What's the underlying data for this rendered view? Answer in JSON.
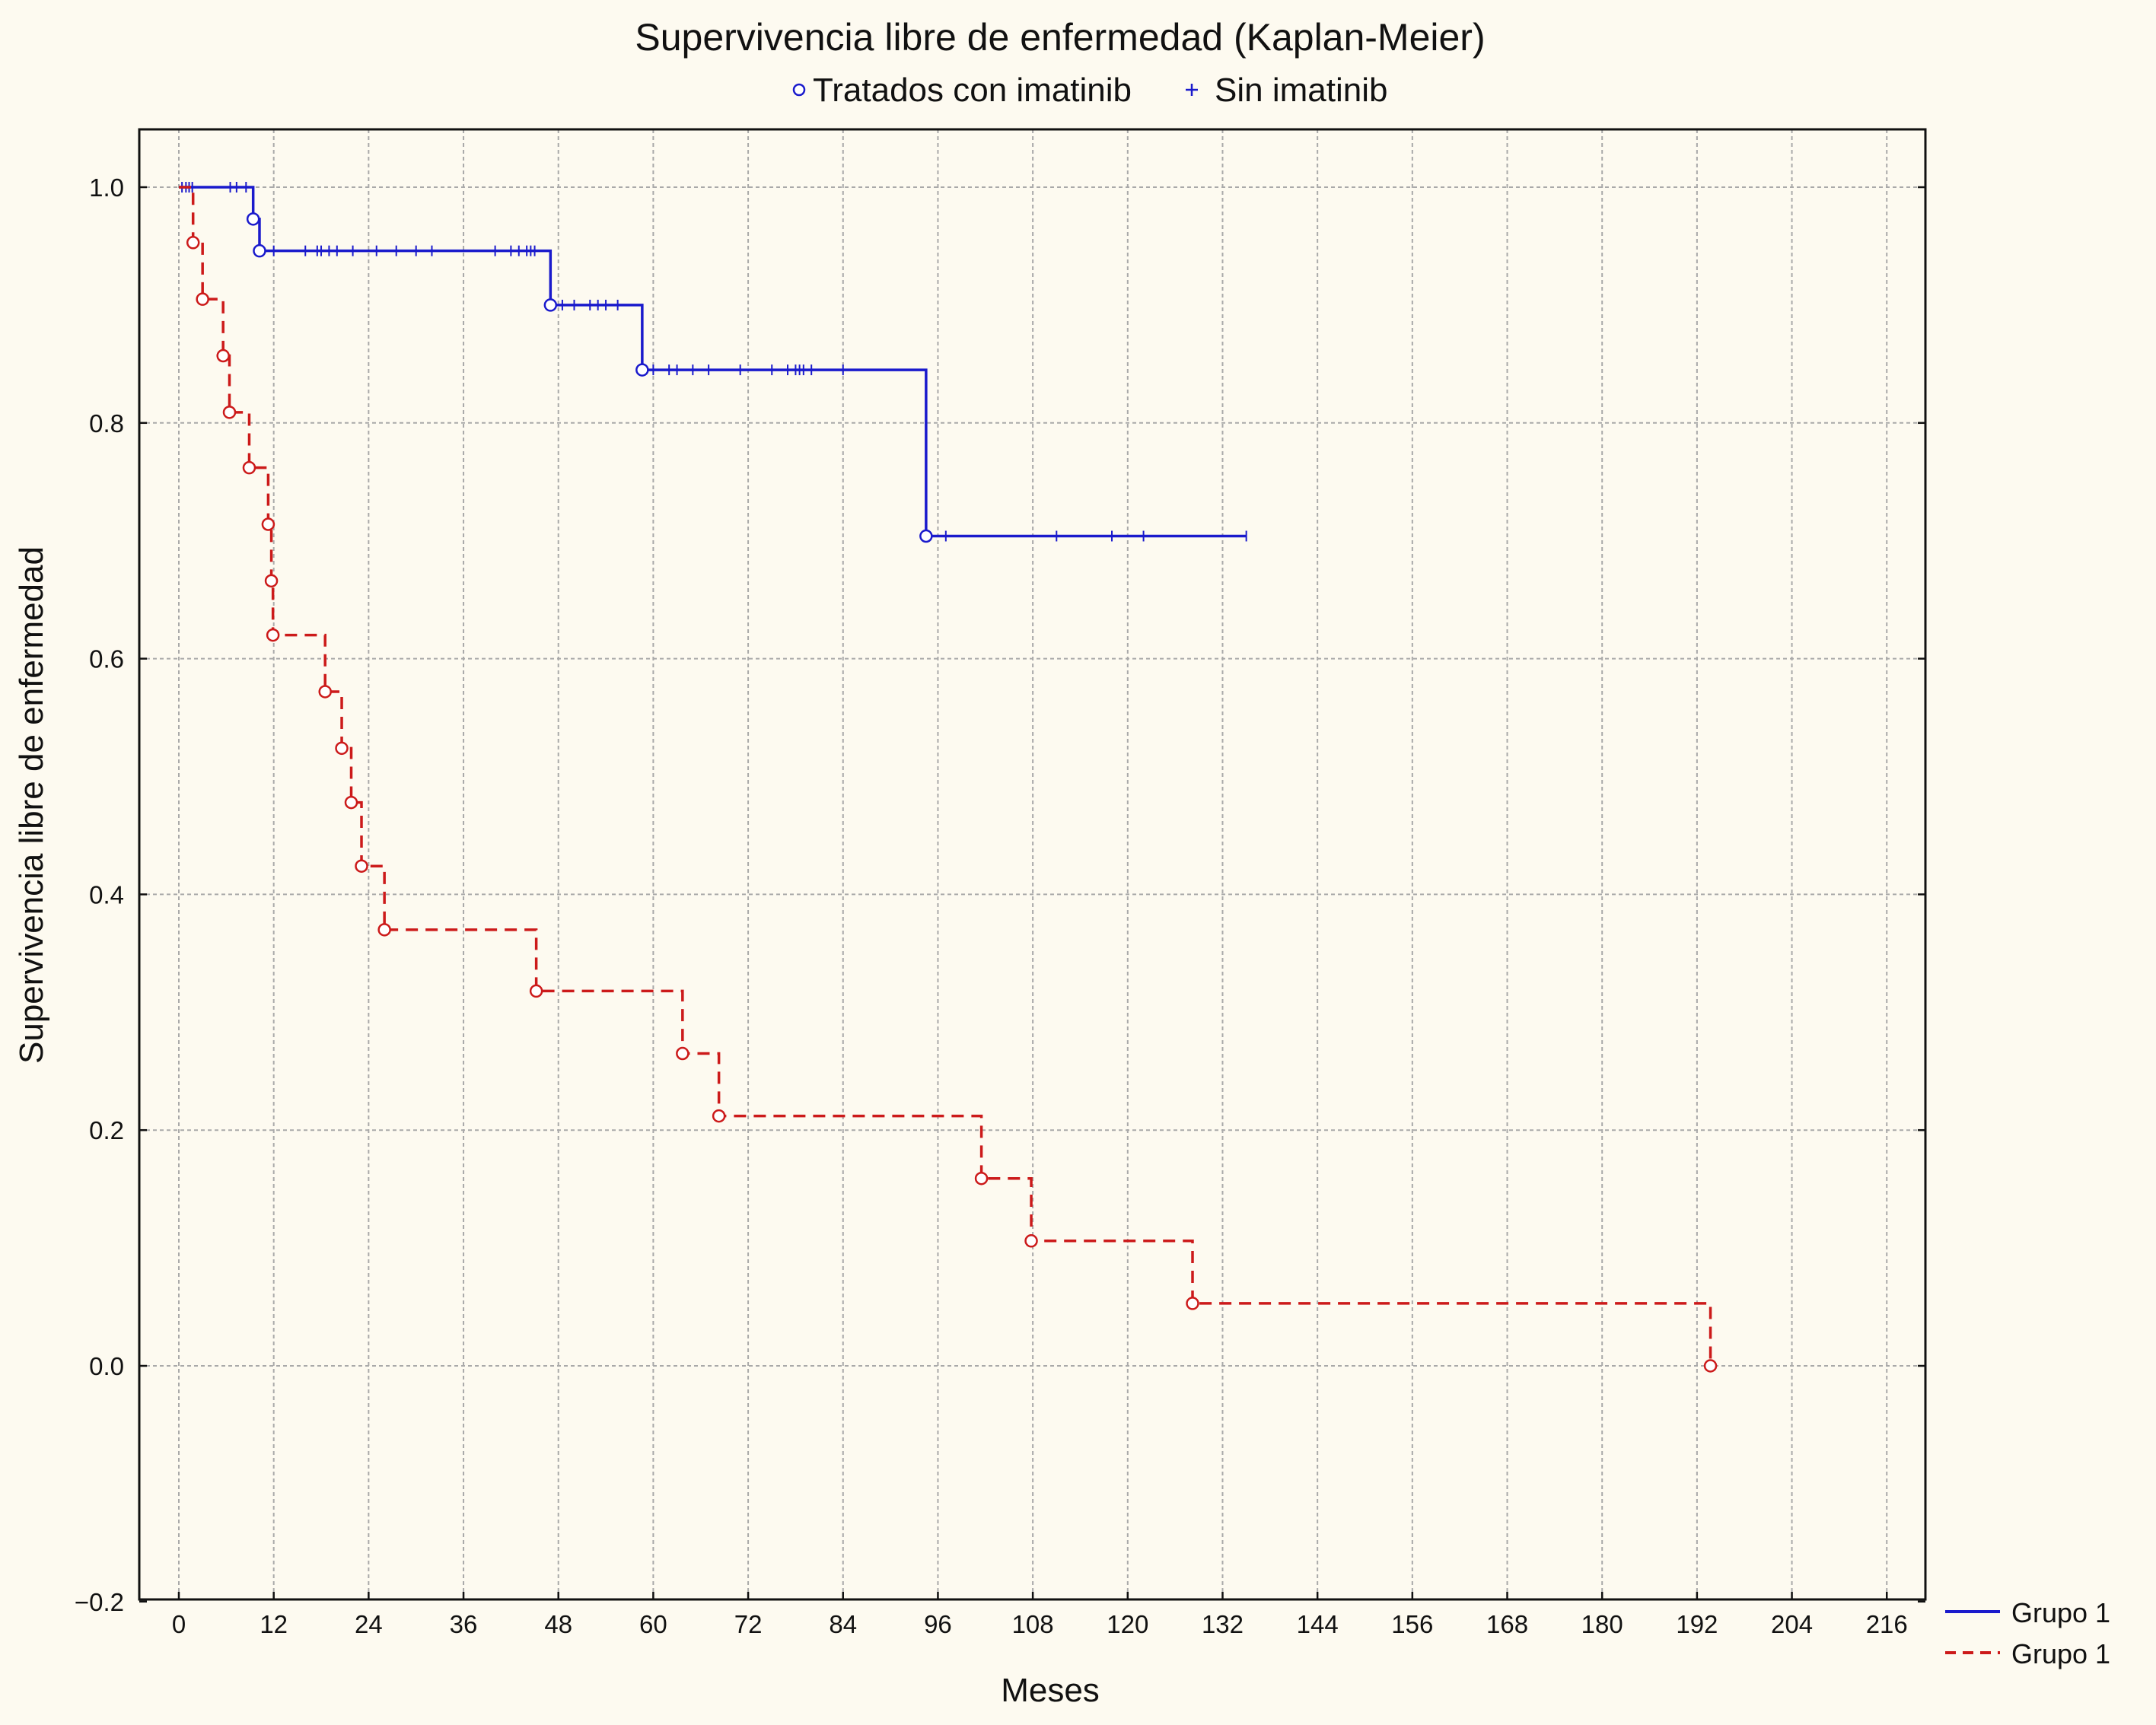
{
  "chart_data": {
    "type": "line",
    "title": "Supervivencia libre de enfermedad (Kaplan-Meier)",
    "xlabel": "Meses",
    "ylabel": "Supervivencia libre de enfermedad",
    "xlim": [
      -4,
      220
    ],
    "ylim": [
      -0.2,
      1.05
    ],
    "xticks": [
      0,
      12,
      24,
      36,
      48,
      60,
      72,
      84,
      96,
      108,
      120,
      132,
      144,
      156,
      168,
      180,
      192,
      204,
      216
    ],
    "xtick_labels": [
      "0",
      "12",
      "24",
      "36",
      "48",
      "60",
      "72",
      "84",
      "96",
      "108",
      "120",
      "132",
      "144",
      "156",
      "168",
      "180",
      "192",
      "204",
      "216"
    ],
    "yticks": [
      -0.2,
      0.0,
      0.2,
      0.4,
      0.6,
      0.8,
      1.0
    ],
    "ytick_labels": [
      "−0.2",
      "0.0",
      "0.2",
      "0.4",
      "0.6",
      "0.8",
      "1.0"
    ],
    "grid": true,
    "marker_legend": {
      "position": "top",
      "entries": [
        {
          "marker": "circle",
          "label": "Tratados con imatinib"
        },
        {
          "marker": "plus",
          "label": "Sin imatinib"
        }
      ]
    },
    "line_legend": {
      "position": "bottom-right",
      "entries": [
        {
          "style": "solid",
          "color": "#1a1acc",
          "label": "Grupo 1"
        },
        {
          "style": "dashed",
          "color": "#cc1a1a",
          "label": "Grupo 1"
        }
      ]
    },
    "series": [
      {
        "style": "solid",
        "color": "#1a1acc",
        "start": 0,
        "end": 135,
        "steps": [
          {
            "t": 0,
            "s": 1.0
          },
          {
            "t": 9.4,
            "s": 0.973
          },
          {
            "t": 10.2,
            "s": 0.946
          },
          {
            "t": 47.0,
            "s": 0.9
          },
          {
            "t": 58.6,
            "s": 0.845
          },
          {
            "t": 94.5,
            "s": 0.704
          }
        ],
        "events": [
          {
            "t": 9.4,
            "s": 0.973
          },
          {
            "t": 10.2,
            "s": 0.946
          },
          {
            "t": 47.0,
            "s": 0.9
          },
          {
            "t": 58.6,
            "s": 0.845
          },
          {
            "t": 94.5,
            "s": 0.704
          }
        ],
        "censored": [
          0.4,
          0.9,
          1.3,
          1.7,
          6.5,
          7.3,
          8.5,
          12.0,
          16.0,
          17.5,
          18.0,
          19.0,
          20.0,
          22.0,
          25.0,
          27.5,
          30.0,
          32.0,
          40.0,
          42.0,
          43.0,
          44.0,
          44.5,
          45.0,
          48.5,
          50.0,
          52.0,
          53.0,
          54.0,
          55.5,
          60.0,
          62.0,
          63.0,
          65.0,
          67.0,
          71.0,
          75.0,
          77.0,
          78.0,
          78.5,
          79.0,
          80.0,
          84.0,
          97.0,
          111.0,
          118.0,
          122.0,
          135.0
        ]
      },
      {
        "style": "dashed",
        "color": "#cc1a1a",
        "start": 0,
        "end": 193.7,
        "steps": [
          {
            "t": 0,
            "s": 1.0
          },
          {
            "t": 1.8,
            "s": 0.953
          },
          {
            "t": 3.0,
            "s": 0.905
          },
          {
            "t": 5.6,
            "s": 0.857
          },
          {
            "t": 6.4,
            "s": 0.809
          },
          {
            "t": 8.9,
            "s": 0.762
          },
          {
            "t": 11.3,
            "s": 0.714
          },
          {
            "t": 11.7,
            "s": 0.666
          },
          {
            "t": 11.9,
            "s": 0.62
          },
          {
            "t": 18.5,
            "s": 0.572
          },
          {
            "t": 20.6,
            "s": 0.524
          },
          {
            "t": 21.8,
            "s": 0.478
          },
          {
            "t": 23.1,
            "s": 0.424
          },
          {
            "t": 26.0,
            "s": 0.37
          },
          {
            "t": 45.2,
            "s": 0.318
          },
          {
            "t": 63.7,
            "s": 0.265
          },
          {
            "t": 68.3,
            "s": 0.212
          },
          {
            "t": 101.5,
            "s": 0.159
          },
          {
            "t": 107.8,
            "s": 0.106
          },
          {
            "t": 128.2,
            "s": 0.053
          },
          {
            "t": 193.7,
            "s": 0.0
          }
        ],
        "events": [
          {
            "t": 1.8,
            "s": 0.953
          },
          {
            "t": 3.0,
            "s": 0.905
          },
          {
            "t": 5.6,
            "s": 0.857
          },
          {
            "t": 6.4,
            "s": 0.809
          },
          {
            "t": 8.9,
            "s": 0.762
          },
          {
            "t": 11.3,
            "s": 0.714
          },
          {
            "t": 11.7,
            "s": 0.666
          },
          {
            "t": 11.9,
            "s": 0.62
          },
          {
            "t": 18.5,
            "s": 0.572
          },
          {
            "t": 20.6,
            "s": 0.524
          },
          {
            "t": 21.8,
            "s": 0.478
          },
          {
            "t": 23.1,
            "s": 0.424
          },
          {
            "t": 26.0,
            "s": 0.37
          },
          {
            "t": 45.2,
            "s": 0.318
          },
          {
            "t": 63.7,
            "s": 0.265
          },
          {
            "t": 68.3,
            "s": 0.212
          },
          {
            "t": 101.5,
            "s": 0.159
          },
          {
            "t": 107.8,
            "s": 0.106
          },
          {
            "t": 128.2,
            "s": 0.053
          },
          {
            "t": 193.7,
            "s": 0.0
          }
        ],
        "censored": []
      }
    ]
  }
}
